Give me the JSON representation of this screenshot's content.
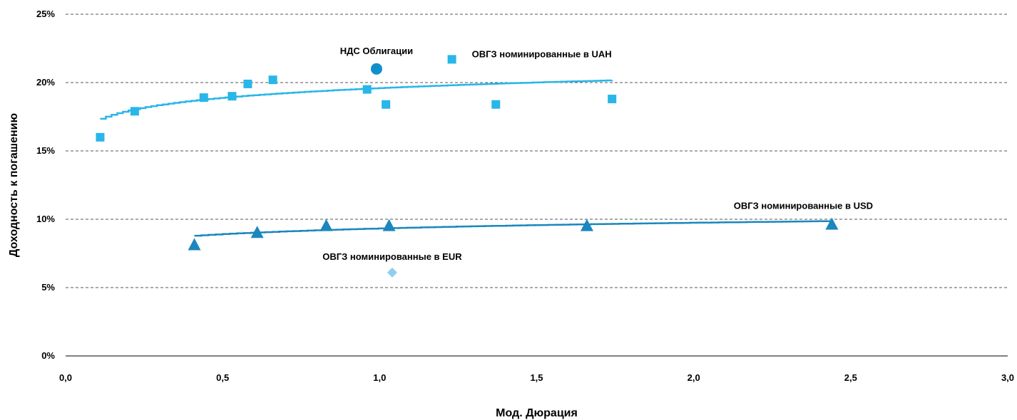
{
  "chart_data": {
    "type": "scatter",
    "xlabel": "Мод. Дюрация",
    "ylabel": "Доходность к погашению",
    "xlim": [
      0,
      3
    ],
    "ylim": [
      0,
      25
    ],
    "x_ticks": [
      "0,0",
      "0,5",
      "1,0",
      "1,5",
      "2,0",
      "2,5",
      "3,0"
    ],
    "y_ticks": [
      "0%",
      "5%",
      "10%",
      "15%",
      "20%",
      "25%"
    ],
    "grid": "horizontal-dashed",
    "series": [
      {
        "key": "uah",
        "marker": "square",
        "color": "#29b6e8",
        "points": [
          [
            0.11,
            16.0
          ],
          [
            0.22,
            17.9
          ],
          [
            0.44,
            18.9
          ],
          [
            0.53,
            19.0
          ],
          [
            0.58,
            19.9
          ],
          [
            0.66,
            20.2
          ],
          [
            0.96,
            19.5
          ],
          [
            1.02,
            18.4
          ],
          [
            1.23,
            21.7
          ],
          [
            1.37,
            18.4
          ],
          [
            1.74,
            18.8
          ]
        ],
        "trend": {
          "kind": "log",
          "from": 0.11,
          "to": 1.74,
          "a": 19.6,
          "b": 1.02
        }
      },
      {
        "key": "usd",
        "marker": "triangle",
        "color": "#1b87bd",
        "points": [
          [
            0.41,
            8.1
          ],
          [
            0.61,
            9.0
          ],
          [
            0.83,
            9.5
          ],
          [
            1.03,
            9.5
          ],
          [
            1.66,
            9.5
          ],
          [
            2.44,
            9.6
          ]
        ],
        "trend": {
          "kind": "log",
          "from": 0.41,
          "to": 2.44,
          "a": 9.33,
          "b": 0.6
        }
      },
      {
        "key": "eur",
        "marker": "diamond",
        "color": "#8ecff0",
        "points": [
          [
            1.04,
            6.1
          ]
        ]
      },
      {
        "key": "nds",
        "marker": "circle",
        "color": "#0f8fcc",
        "points": [
          [
            0.99,
            21.0
          ]
        ]
      }
    ],
    "annotations": [
      {
        "key": "nds",
        "text": "НДС  Облигации",
        "x": 0.99,
        "y": 21.0
      },
      {
        "key": "uah",
        "text": "ОВГЗ номинированные в UAH",
        "x": 1.23,
        "y": 21.7
      },
      {
        "key": "usd",
        "text": "ОВГЗ номинированные в USD",
        "x": 2.44,
        "y": 9.6
      },
      {
        "key": "eur",
        "text": "ОВГЗ номинированные в EUR",
        "x": 1.04,
        "y": 6.1
      }
    ]
  }
}
